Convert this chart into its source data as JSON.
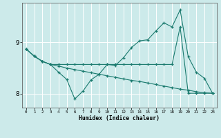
{
  "xlabel": "Humidex (Indice chaleur)",
  "bg_color": "#cceaea",
  "line_color": "#1a7a6e",
  "grid_color": "#ffffff",
  "x_values": [
    0,
    1,
    2,
    3,
    4,
    5,
    6,
    7,
    8,
    9,
    10,
    11,
    12,
    13,
    14,
    15,
    16,
    17,
    18,
    19,
    20,
    21,
    22,
    23
  ],
  "series1": [
    8.87,
    8.73,
    8.63,
    8.57,
    8.42,
    8.28,
    7.9,
    8.05,
    8.27,
    8.38,
    8.57,
    8.55,
    8.7,
    8.9,
    9.03,
    9.05,
    9.22,
    9.38,
    9.3,
    9.63,
    8.72,
    8.42,
    8.3,
    8.01
  ],
  "series2": [
    8.87,
    8.73,
    8.63,
    8.57,
    8.57,
    8.57,
    8.57,
    8.57,
    8.57,
    8.57,
    8.57,
    8.57,
    8.57,
    8.57,
    8.57,
    8.57,
    8.57,
    8.57,
    8.57,
    9.3,
    8.01,
    8.01,
    8.01,
    8.01
  ],
  "series3": [
    8.87,
    8.73,
    8.63,
    8.57,
    8.54,
    8.5,
    8.47,
    8.44,
    8.41,
    8.38,
    8.35,
    8.32,
    8.29,
    8.26,
    8.24,
    8.21,
    8.18,
    8.15,
    8.12,
    8.09,
    8.07,
    8.04,
    8.02,
    8.01
  ],
  "ylim_bottom": 7.73,
  "ylim_top": 9.77,
  "yticks": [
    8,
    9
  ],
  "xticks": [
    0,
    1,
    2,
    3,
    4,
    5,
    6,
    7,
    8,
    9,
    10,
    11,
    12,
    13,
    14,
    15,
    16,
    17,
    18,
    19,
    20,
    21,
    22,
    23
  ]
}
